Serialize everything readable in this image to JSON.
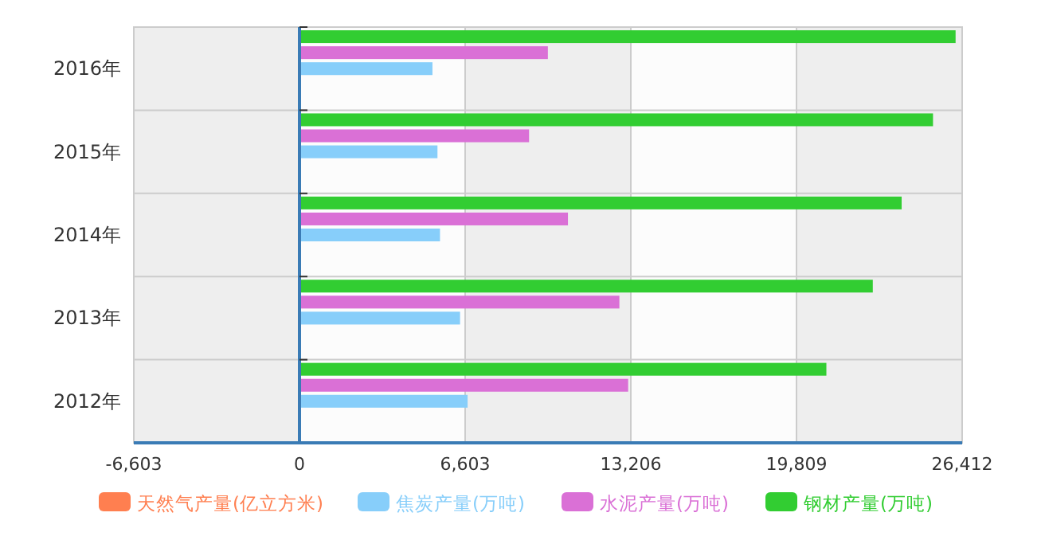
{
  "chart_data": {
    "type": "bar",
    "orientation": "horizontal",
    "categories": [
      "2016年",
      "2015年",
      "2014年",
      "2013年",
      "2012年"
    ],
    "series": [
      {
        "name": "天然气产量(亿立方米)",
        "color": "#ff7f50",
        "values": [
          null,
          null,
          null,
          null,
          null
        ]
      },
      {
        "name": "焦炭产量(万吨)",
        "color": "#87cefa",
        "values": [
          5300,
          5500,
          5600,
          6400,
          6700
        ]
      },
      {
        "name": "水泥产量(万吨)",
        "color": "#da70d6",
        "values": [
          9900,
          9150,
          10700,
          12750,
          13100
        ]
      },
      {
        "name": "钢材产量(万吨)",
        "color": "#32cd32",
        "values": [
          26150,
          25250,
          24000,
          22850,
          21000
        ]
      }
    ],
    "xlim": [
      -6603,
      26412
    ],
    "xticks": [
      {
        "value": -6603,
        "label": "-6,603"
      },
      0,
      {
        "value": 6603,
        "label": "6,603"
      },
      {
        "value": 13206,
        "label": "13,206"
      },
      {
        "value": 19809,
        "label": "19,809"
      },
      {
        "value": 26412,
        "label": "26,412"
      }
    ],
    "ref_lines": [
      {
        "axis": "x",
        "value": 0,
        "color": "#3a7bb5"
      }
    ],
    "grid": true,
    "legend": "bottom"
  }
}
